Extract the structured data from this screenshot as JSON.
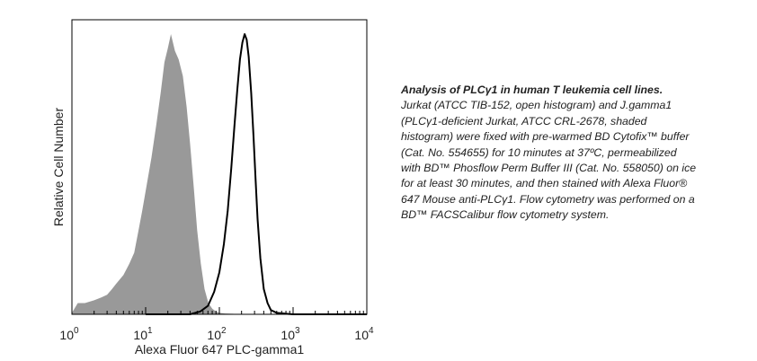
{
  "chart_data": {
    "type": "area",
    "title": "",
    "xlabel": "Alexa Fluor 647 PLC-gamma1",
    "ylabel": "Relative Cell Number",
    "x_scale": "log",
    "xlim": [
      1,
      10000
    ],
    "ylim": [
      0,
      1.0
    ],
    "grid": false,
    "x_ticks": [
      {
        "base": "10",
        "exp": "0",
        "value": 1
      },
      {
        "base": "10",
        "exp": "1",
        "value": 10
      },
      {
        "base": "10",
        "exp": "2",
        "value": 100
      },
      {
        "base": "10",
        "exp": "3",
        "value": 1000
      },
      {
        "base": "10",
        "exp": "4",
        "value": 10000
      }
    ],
    "series": [
      {
        "style": "shaded",
        "color": "#999999",
        "x": [
          1,
          1.2,
          1.5,
          2,
          2.5,
          3,
          3.5,
          4,
          5,
          6,
          7,
          8,
          9,
          10,
          12,
          14,
          16,
          18,
          20,
          22,
          25,
          28,
          32,
          36,
          40,
          45,
          50,
          56,
          63,
          71,
          80,
          90,
          100,
          120,
          150,
          200
        ],
        "y": [
          0.005,
          0.04,
          0.04,
          0.05,
          0.06,
          0.07,
          0.09,
          0.11,
          0.14,
          0.18,
          0.22,
          0.3,
          0.37,
          0.44,
          0.56,
          0.68,
          0.79,
          0.9,
          0.95,
          1.0,
          0.94,
          0.91,
          0.85,
          0.74,
          0.61,
          0.45,
          0.3,
          0.18,
          0.09,
          0.04,
          0.02,
          0.01,
          0.005,
          0.003,
          0.002,
          0.0
        ]
      },
      {
        "style": "open",
        "color": "#000000",
        "x": [
          10,
          40,
          55,
          70,
          85,
          100,
          115,
          130,
          145,
          160,
          175,
          190,
          205,
          220,
          235,
          250,
          270,
          290,
          310,
          330,
          360,
          400,
          450,
          500,
          600,
          800,
          1000,
          10000
        ],
        "y": [
          0.0,
          0.0,
          0.01,
          0.03,
          0.08,
          0.15,
          0.25,
          0.37,
          0.52,
          0.67,
          0.8,
          0.91,
          0.97,
          1.0,
          0.98,
          0.92,
          0.79,
          0.64,
          0.48,
          0.34,
          0.2,
          0.09,
          0.04,
          0.015,
          0.005,
          0.002,
          0.0,
          0.0
        ]
      }
    ]
  },
  "caption": {
    "title": "Analysis of PLCγ1 in human T leukemia cell lines.",
    "lines": [
      "Jurkat (ATCC TIB-152, open histogram) and J.gamma1",
      "(PLCγ1-deficient Jurkat, ATCC CRL-2678, shaded",
      "histogram) were fixed with pre-warmed BD Cytofix™ buffer",
      "(Cat. No. 554655) for 10 minutes at 37ºC, permeabilized",
      "with BD™ Phosflow Perm Buffer III (Cat. No. 558050) on ice",
      "for at least 30 minutes, and then stained with Alexa Fluor®",
      "647 Mouse anti-PLCγ1.  Flow cytometry was performed on a",
      "BD™ FACSCalibur flow cytometry system."
    ]
  }
}
